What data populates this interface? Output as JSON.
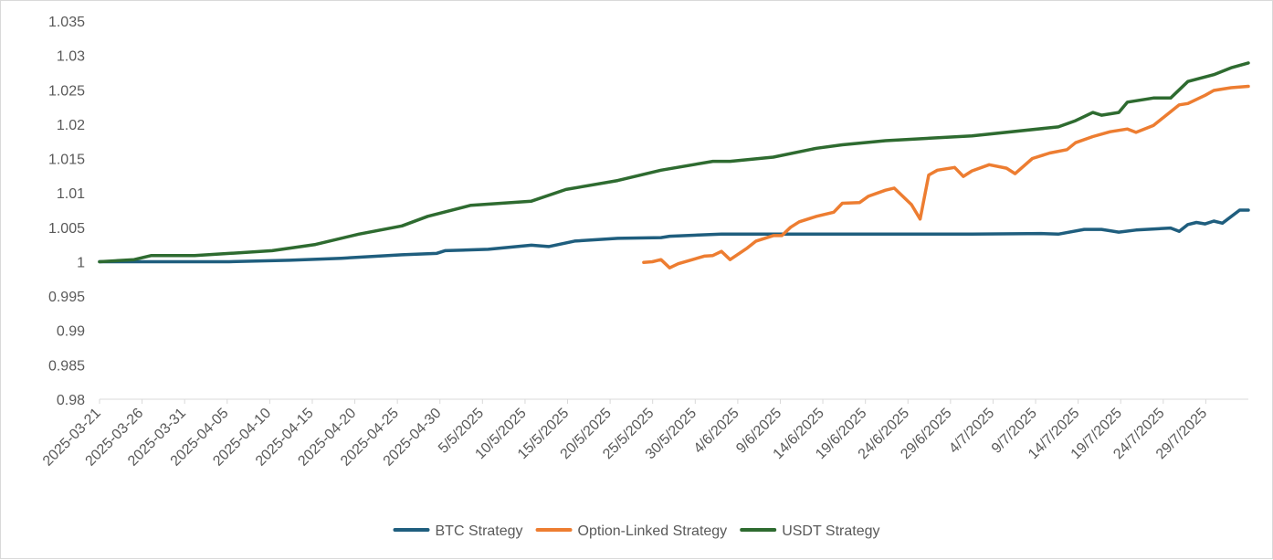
{
  "chart_data": {
    "type": "line",
    "title": "",
    "xlabel": "",
    "ylabel": "",
    "ylim": [
      0.98,
      1.035
    ],
    "yticks": [
      "1.035",
      "1.03",
      "1.025",
      "1.02",
      "1.015",
      "1.01",
      "1.005",
      "1",
      "0.995",
      "0.99",
      "0.985",
      "0.98"
    ],
    "x_start": "2025-03-21",
    "x_end": "2025-08-01",
    "xtick_labels": [
      "2025-03-21",
      "2025-03-26",
      "2025-03-31",
      "2025-04-05",
      "2025-04-10",
      "2025-04-15",
      "2025-04-20",
      "2025-04-25",
      "2025-04-30",
      "5/5/2025",
      "10/5/2025",
      "15/5/2025",
      "20/5/2025",
      "25/5/2025",
      "30/5/2025",
      "4/6/2025",
      "9/6/2025",
      "14/6/2025",
      "19/6/2025",
      "24/6/2025",
      "29/6/2025",
      "4/7/2025",
      "9/7/2025",
      "14/7/2025",
      "19/7/2025",
      "24/7/2025",
      "29/7/2025"
    ],
    "grid": false,
    "legend_position": "bottom",
    "series": [
      {
        "name": "BTC Strategy",
        "color": "#1f5e7e",
        "points": [
          [
            "2025-03-21",
            1.0
          ],
          [
            "2025-04-05",
            1.0
          ],
          [
            "2025-04-12",
            1.0002
          ],
          [
            "2025-04-18",
            1.0005
          ],
          [
            "2025-04-25",
            1.001
          ],
          [
            "2025-04-29",
            1.0012
          ],
          [
            "2025-04-30",
            1.0016
          ],
          [
            "2025-05-05",
            1.0018
          ],
          [
            "2025-05-10",
            1.0024
          ],
          [
            "2025-05-12",
            1.0022
          ],
          [
            "2025-05-15",
            1.003
          ],
          [
            "2025-05-20",
            1.0034
          ],
          [
            "2025-05-25",
            1.0035
          ],
          [
            "2025-05-26",
            1.0037
          ],
          [
            "2025-06-01",
            1.004
          ],
          [
            "2025-06-05",
            1.004
          ],
          [
            "2025-06-15",
            1.004
          ],
          [
            "2025-06-30",
            1.004
          ],
          [
            "2025-07-08",
            1.0041
          ],
          [
            "2025-07-10",
            1.004
          ],
          [
            "2025-07-13",
            1.0047
          ],
          [
            "2025-07-15",
            1.0047
          ],
          [
            "2025-07-17",
            1.0043
          ],
          [
            "2025-07-19",
            1.0046
          ],
          [
            "2025-07-23",
            1.0049
          ],
          [
            "2025-07-24",
            1.0044
          ],
          [
            "2025-07-25",
            1.0054
          ],
          [
            "2025-07-26",
            1.0057
          ],
          [
            "2025-07-27",
            1.0055
          ],
          [
            "2025-07-28",
            1.0059
          ],
          [
            "2025-07-29",
            1.0056
          ],
          [
            "2025-07-31",
            1.0075
          ],
          [
            "2025-08-01",
            1.0075
          ]
        ]
      },
      {
        "name": "Option-Linked Strategy",
        "color": "#ed7d31",
        "points": [
          [
            "2025-05-23",
            0.9999
          ],
          [
            "2025-05-24",
            1.0
          ],
          [
            "2025-05-25",
            1.0003
          ],
          [
            "2025-05-26",
            0.9991
          ],
          [
            "2025-05-27",
            0.9997
          ],
          [
            "2025-05-30",
            1.0008
          ],
          [
            "2025-05-31",
            1.0009
          ],
          [
            "2025-06-01",
            1.0015
          ],
          [
            "2025-06-02",
            1.0003
          ],
          [
            "2025-06-04",
            1.002
          ],
          [
            "2025-06-05",
            1.003
          ],
          [
            "2025-06-07",
            1.0038
          ],
          [
            "2025-06-08",
            1.0038
          ],
          [
            "2025-06-09",
            1.005
          ],
          [
            "2025-06-10",
            1.0058
          ],
          [
            "2025-06-12",
            1.0066
          ],
          [
            "2025-06-14",
            1.0072
          ],
          [
            "2025-06-15",
            1.0085
          ],
          [
            "2025-06-17",
            1.0086
          ],
          [
            "2025-06-18",
            1.0095
          ],
          [
            "2025-06-20",
            1.0104
          ],
          [
            "2025-06-21",
            1.0107
          ],
          [
            "2025-06-23",
            1.0083
          ],
          [
            "2025-06-24",
            1.0062
          ],
          [
            "2025-06-25",
            1.0126
          ],
          [
            "2025-06-26",
            1.0133
          ],
          [
            "2025-06-28",
            1.0137
          ],
          [
            "2025-06-29",
            1.0124
          ],
          [
            "2025-06-30",
            1.0132
          ],
          [
            "2025-07-02",
            1.0141
          ],
          [
            "2025-07-04",
            1.0136
          ],
          [
            "2025-07-05",
            1.0128
          ],
          [
            "2025-07-07",
            1.015
          ],
          [
            "2025-07-09",
            1.0158
          ],
          [
            "2025-07-11",
            1.0163
          ],
          [
            "2025-07-12",
            1.0173
          ],
          [
            "2025-07-14",
            1.0182
          ],
          [
            "2025-07-16",
            1.0189
          ],
          [
            "2025-07-18",
            1.0193
          ],
          [
            "2025-07-19",
            1.0188
          ],
          [
            "2025-07-21",
            1.0198
          ],
          [
            "2025-07-22",
            1.0208
          ],
          [
            "2025-07-24",
            1.0228
          ],
          [
            "2025-07-25",
            1.023
          ],
          [
            "2025-07-27",
            1.0242
          ],
          [
            "2025-07-28",
            1.0249
          ],
          [
            "2025-07-30",
            1.0253
          ],
          [
            "2025-08-01",
            1.0255
          ]
        ]
      },
      {
        "name": "USDT Strategy",
        "color": "#2e6b30",
        "points": [
          [
            "2025-03-21",
            1.0
          ],
          [
            "2025-03-25",
            1.0003
          ],
          [
            "2025-03-27",
            1.0009
          ],
          [
            "2025-04-01",
            1.0009
          ],
          [
            "2025-04-05",
            1.0012
          ],
          [
            "2025-04-10",
            1.0016
          ],
          [
            "2025-04-15",
            1.0025
          ],
          [
            "2025-04-20",
            1.004
          ],
          [
            "2025-04-25",
            1.0052
          ],
          [
            "2025-04-28",
            1.0066
          ],
          [
            "2025-05-03",
            1.0082
          ],
          [
            "2025-05-10",
            1.0088
          ],
          [
            "2025-05-14",
            1.0105
          ],
          [
            "2025-05-20",
            1.0118
          ],
          [
            "2025-05-25",
            1.0133
          ],
          [
            "2025-05-31",
            1.0146
          ],
          [
            "2025-06-02",
            1.0146
          ],
          [
            "2025-06-07",
            1.0152
          ],
          [
            "2025-06-12",
            1.0165
          ],
          [
            "2025-06-15",
            1.017
          ],
          [
            "2025-06-20",
            1.0176
          ],
          [
            "2025-06-30",
            1.0183
          ],
          [
            "2025-07-10",
            1.0196
          ],
          [
            "2025-07-12",
            1.0205
          ],
          [
            "2025-07-14",
            1.0217
          ],
          [
            "2025-07-15",
            1.0213
          ],
          [
            "2025-07-17",
            1.0217
          ],
          [
            "2025-07-18",
            1.0232
          ],
          [
            "2025-07-21",
            1.0238
          ],
          [
            "2025-07-23",
            1.0238
          ],
          [
            "2025-07-25",
            1.0262
          ],
          [
            "2025-07-28",
            1.0272
          ],
          [
            "2025-07-30",
            1.0282
          ],
          [
            "2025-08-01",
            1.0289
          ]
        ]
      }
    ]
  }
}
